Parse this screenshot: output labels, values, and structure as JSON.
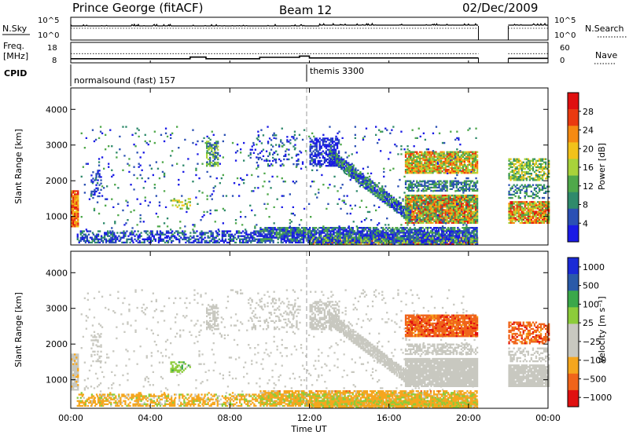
{
  "header": {
    "station": "Prince George (fitACF)",
    "beam": "Beam 12",
    "date": "02/Dec/2009"
  },
  "colors": {
    "power_scale": [
      "#1a1ae6",
      "#2b50b4",
      "#2f8a6b",
      "#4fa84a",
      "#a8d23a",
      "#f2c21a",
      "#f58a12",
      "#ea3a10",
      "#e01010"
    ],
    "velocity_scale": [
      "#e01010",
      "#f0641a",
      "#f5a61e",
      "#c8c8c0",
      "#c8c8c0",
      "#8ccc3a",
      "#3aa84a",
      "#2a5aa8",
      "#1a2ad6"
    ],
    "ground_scatter": "#c8c8c0"
  },
  "chart_data": [
    {
      "type": "line",
      "name_panel": "noise",
      "left_label": "N.Sky",
      "right_label": "N.Search",
      "left_ticks": [
        "10^5",
        "10^0"
      ],
      "right_ticks": [
        "10^5",
        "10^0"
      ],
      "x_range_hours": [
        0,
        24
      ],
      "data_gaps_hours": [
        [
          20.5,
          22
        ]
      ]
    },
    {
      "type": "line",
      "name_panel": "frequency",
      "left_label_line1": "Freq.",
      "left_label_line2": "[MHz]",
      "right_label": "Nave",
      "left_ticks": [
        "18",
        "8"
      ],
      "right_ticks": [
        "60",
        "0"
      ],
      "freq_mhz_ylim": [
        8,
        18
      ],
      "nave_ylim": [
        0,
        60
      ],
      "x_range_hours": [
        0,
        24
      ],
      "freq_steps": [
        {
          "start": 0.0,
          "end": 6.0,
          "value": 10.0
        },
        {
          "start": 6.0,
          "end": 6.8,
          "value": 10.8
        },
        {
          "start": 6.8,
          "end": 9.5,
          "value": 10.0
        },
        {
          "start": 9.5,
          "end": 11.5,
          "value": 10.7
        },
        {
          "start": 11.5,
          "end": 12.0,
          "value": 11.3
        },
        {
          "start": 12.0,
          "end": 20.5,
          "value": 10.4
        },
        {
          "start": 22.0,
          "end": 24.0,
          "value": 10.2
        }
      ],
      "nave_level": 27
    },
    {
      "type": "table",
      "name_panel": "cpid",
      "label": "CPID",
      "modes": [
        {
          "start_hour": 0,
          "text": "normalsound (fast) 157"
        },
        {
          "start_hour": 12,
          "text": "themis 3300"
        }
      ]
    },
    {
      "type": "heatmap",
      "name_panel": "power",
      "ylabel": "Slant Range [km]",
      "ylim": [
        200,
        4600
      ],
      "yticks": [
        1000,
        2000,
        3000,
        4000
      ],
      "xlim_hours": [
        0,
        24
      ],
      "colorbar_label": "Power [dB]",
      "colorbar_ticks": [
        "4",
        "8",
        "12",
        "16",
        "20",
        "24",
        "28"
      ]
    },
    {
      "type": "heatmap",
      "name_panel": "velocity",
      "ylabel": "Slant Range [km]",
      "ylim": [
        200,
        4600
      ],
      "yticks": [
        1000,
        2000,
        3000,
        4000
      ],
      "xlim_hours": [
        0,
        24
      ],
      "colorbar_label": "Velocity [m s⁻¹]",
      "colorbar_ticks": [
        "1000",
        "500",
        "100",
        "25",
        "−25",
        "−100",
        "−500",
        "−1000"
      ]
    }
  ],
  "time_axis": {
    "label": "Time UT",
    "ticks": [
      "00:00",
      "04:00",
      "08:00",
      "12:00",
      "16:00",
      "20:00",
      "00:00"
    ]
  }
}
